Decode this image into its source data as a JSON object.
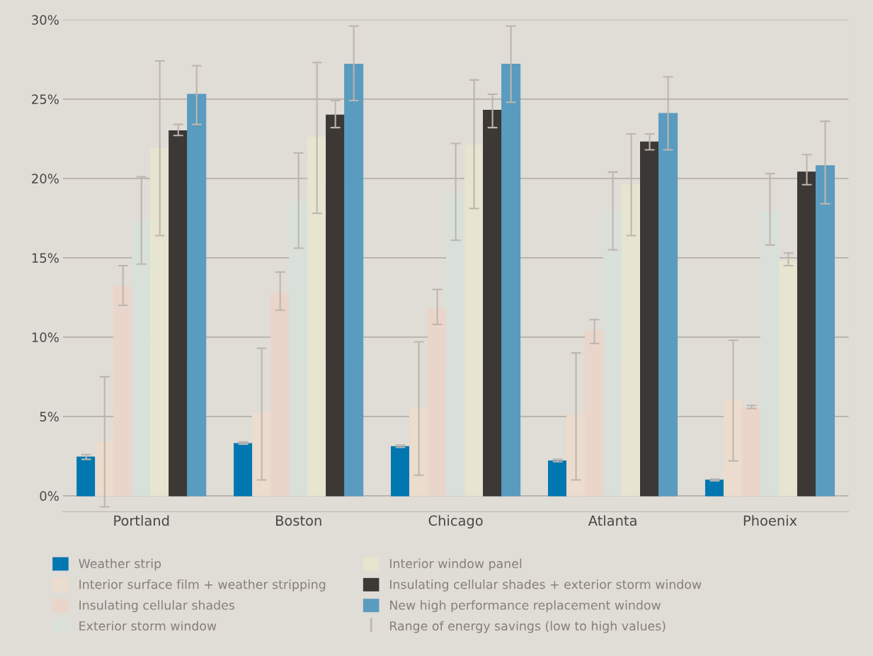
{
  "chart_data": {
    "type": "bar",
    "categories": [
      "Portland",
      "Boston",
      "Chicago",
      "Atlanta",
      "Phoenix"
    ],
    "series": [
      {
        "name": "Weather strip",
        "color": "#0077b0",
        "values": [
          2.45,
          3.3,
          3.1,
          2.2,
          1.0
        ],
        "errors": [
          [
            2.3,
            2.6
          ],
          [
            3.25,
            3.4
          ],
          [
            3.05,
            3.2
          ],
          [
            2.15,
            2.3
          ],
          [
            0.95,
            1.05
          ]
        ]
      },
      {
        "name": "Interior surface film + weather stripping",
        "color": "#ecdccd",
        "values": [
          3.4,
          5.2,
          5.5,
          5.1,
          6.0
        ],
        "errors": [
          [
            -0.7,
            7.5
          ],
          [
            1.0,
            9.3
          ],
          [
            1.3,
            9.7
          ],
          [
            1.0,
            9.0
          ],
          [
            2.2,
            9.8
          ]
        ]
      },
      {
        "name": "Insulating cellular shades",
        "color": "#ead5ca",
        "values": [
          13.2,
          12.8,
          11.8,
          10.4,
          5.5
        ],
        "errors": [
          [
            12.0,
            14.5
          ],
          [
            11.7,
            14.1
          ],
          [
            10.8,
            13.0
          ],
          [
            9.6,
            11.1
          ],
          [
            5.5,
            5.7
          ]
        ]
      },
      {
        "name": "Exterior storm window",
        "color": "#d9e0da",
        "values": [
          17.3,
          18.6,
          19.1,
          18.0,
          17.9
        ],
        "errors": [
          [
            14.6,
            20.1
          ],
          [
            15.6,
            21.6
          ],
          [
            16.1,
            22.2
          ],
          [
            15.5,
            20.4
          ],
          [
            15.8,
            20.3
          ]
        ]
      },
      {
        "name": "Interior window panel",
        "color": "#e7e4d0",
        "values": [
          21.9,
          22.6,
          22.1,
          19.6,
          14.8
        ],
        "errors": [
          [
            16.4,
            27.4
          ],
          [
            17.8,
            27.3
          ],
          [
            18.1,
            26.2
          ],
          [
            16.4,
            22.8
          ],
          [
            14.5,
            15.3
          ]
        ]
      },
      {
        "name": "Insulating cellular shades + exterior storm window",
        "color": "#3b3836",
        "values": [
          23.0,
          24.0,
          24.3,
          22.3,
          20.4
        ],
        "errors": [
          [
            22.7,
            23.4
          ],
          [
            23.2,
            24.9
          ],
          [
            23.2,
            25.3
          ],
          [
            21.8,
            22.8
          ],
          [
            19.6,
            21.5
          ]
        ]
      },
      {
        "name": "New high performance replacement window",
        "color": "#5a9bc0",
        "values": [
          25.3,
          27.2,
          27.2,
          24.1,
          20.8
        ],
        "errors": [
          [
            23.4,
            27.1
          ],
          [
            24.9,
            29.6
          ],
          [
            24.8,
            29.6
          ],
          [
            21.8,
            26.4
          ],
          [
            18.4,
            23.6
          ]
        ]
      }
    ],
    "ylim": [
      -1,
      30
    ],
    "yticks": [
      {
        "value": 0,
        "label": "0%"
      },
      {
        "value": 5,
        "label": "5%"
      },
      {
        "value": 10,
        "label": "10%"
      },
      {
        "value": 15,
        "label": "15%"
      },
      {
        "value": 20,
        "label": "20%"
      },
      {
        "value": 25,
        "label": "25%"
      },
      {
        "value": 30,
        "label": "30%"
      }
    ],
    "grid": "y",
    "legend": "bottom",
    "annotations": [
      "Range of energy savings (low to high values)"
    ]
  }
}
